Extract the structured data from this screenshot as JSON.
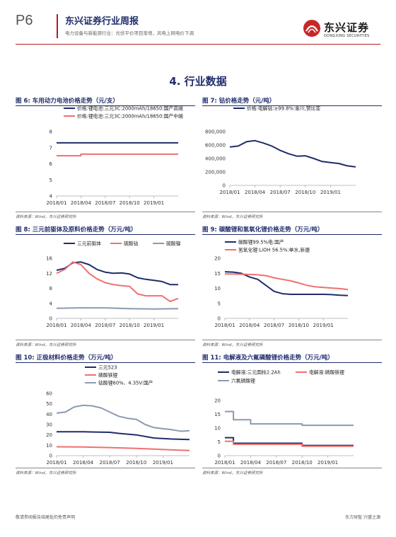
{
  "header": {
    "page_number": "P6",
    "title": "东兴证券行业周报",
    "subtitle": "电力设备与新能源行业：光伏平价项目渐增，风电上网电价下调",
    "logo_name": "东兴证券",
    "logo_en": "DONGXING SECURITIES"
  },
  "section_title": "4. 行业数据",
  "source_label": "资料来源：Wind，东兴证券研究所",
  "footer": {
    "left": "敬请参阅报告结尾处的免责声明",
    "right": "东方财智 兴盛之源"
  },
  "colors": {
    "navy": "#1f2d6b",
    "red": "#f07070",
    "gray": "#8a9bb0",
    "brand_red": "#b71c1c"
  },
  "chart_data": [
    {
      "figure_title": "图 6: 车用动力电池价格走势（元/支）",
      "type": "line",
      "x_ticks": [
        "2018/01",
        "2018/04",
        "2018/07",
        "2018/10",
        "2019/01"
      ],
      "y_ticks": [
        "4",
        "5",
        "6",
        "7",
        "8"
      ],
      "ylim": [
        4,
        8
      ],
      "series": [
        {
          "name": "价格:锂电池:三元3C:2000mAh/18650:国产高端",
          "color": "#1f2d6b",
          "points": [
            [
              "2018/01",
              7.3
            ],
            [
              "2019/04",
              7.3
            ]
          ]
        },
        {
          "name": "价格:锂电池:三元3C:2000mAh/18650:国产中端",
          "color": "#f07070",
          "points": [
            [
              "2018/01",
              6.5
            ],
            [
              "2018/04",
              6.5
            ],
            [
              "2018/04",
              6.6
            ],
            [
              "2019/04",
              6.6
            ]
          ]
        }
      ]
    },
    {
      "figure_title": "图 7: 钴价格走势（元/吨）",
      "type": "line",
      "x_ticks": [
        "2018/01",
        "2018/04",
        "2018/07",
        "2018/10",
        "2019/01"
      ],
      "y_ticks": [
        "0",
        "200,000",
        "400,000",
        "600,000",
        "800,000"
      ],
      "ylim": [
        0,
        800000
      ],
      "series": [
        {
          "name": "价格:电解钴:≥99.8%:金川,赞比亚",
          "color": "#1f2d6b",
          "points": [
            [
              "2018/01",
              570000
            ],
            [
              "2018/02",
              585000
            ],
            [
              "2018/03",
              650000
            ],
            [
              "2018/04",
              665000
            ],
            [
              "2018/05",
              630000
            ],
            [
              "2018/06",
              585000
            ],
            [
              "2018/07",
              520000
            ],
            [
              "2018/08",
              470000
            ],
            [
              "2018/09",
              435000
            ],
            [
              "2018/10",
              440000
            ],
            [
              "2018/11",
              400000
            ],
            [
              "2018/12",
              355000
            ],
            [
              "2019/01",
              340000
            ],
            [
              "2019/02",
              325000
            ],
            [
              "2019/03",
              290000
            ],
            [
              "2019/04",
              275000
            ]
          ]
        }
      ]
    },
    {
      "figure_title": "图 8: 三元前驱体及原料价格走势（万元/吨）",
      "type": "line",
      "x_ticks": [
        "2018/01",
        "2018/04",
        "2018/07",
        "2018/10",
        "2019/01"
      ],
      "y_ticks": [
        "0",
        "4",
        "8",
        "12",
        "16"
      ],
      "ylim": [
        0,
        16
      ],
      "series": [
        {
          "name": "三元前驱体",
          "color": "#1f2d6b",
          "points": [
            [
              "2018/01",
              12.8
            ],
            [
              "2018/02",
              13.3
            ],
            [
              "2018/03",
              14.8
            ],
            [
              "2018/04",
              15.0
            ],
            [
              "2018/05",
              14.3
            ],
            [
              "2018/06",
              13.0
            ],
            [
              "2018/07",
              12.3
            ],
            [
              "2018/08",
              12.0
            ],
            [
              "2018/09",
              12.1
            ],
            [
              "2018/10",
              11.8
            ],
            [
              "2018/11",
              10.8
            ],
            [
              "2018/12",
              10.4
            ],
            [
              "2019/01",
              10.1
            ],
            [
              "2019/02",
              9.8
            ],
            [
              "2019/03",
              9.0
            ],
            [
              "2019/04",
              9.0
            ]
          ]
        },
        {
          "name": "硫酸钴",
          "color": "#f07070",
          "points": [
            [
              "2018/01",
              12.0
            ],
            [
              "2018/02",
              13.0
            ],
            [
              "2018/03",
              15.0
            ],
            [
              "2018/04",
              14.3
            ],
            [
              "2018/05",
              12.0
            ],
            [
              "2018/06",
              10.5
            ],
            [
              "2018/07",
              9.5
            ],
            [
              "2018/08",
              9.0
            ],
            [
              "2018/09",
              8.7
            ],
            [
              "2018/10",
              8.5
            ],
            [
              "2018/11",
              6.5
            ],
            [
              "2018/12",
              6.0
            ],
            [
              "2019/01",
              6.0
            ],
            [
              "2019/02",
              6.0
            ],
            [
              "2019/03",
              4.5
            ],
            [
              "2019/04",
              5.3
            ]
          ]
        },
        {
          "name": "硫酸镍",
          "color": "#8a9bb0",
          "points": [
            [
              "2018/01",
              2.7
            ],
            [
              "2018/04",
              2.8
            ],
            [
              "2018/07",
              2.8
            ],
            [
              "2018/10",
              2.6
            ],
            [
              "2019/01",
              2.5
            ],
            [
              "2019/04",
              2.6
            ]
          ]
        }
      ]
    },
    {
      "figure_title": "图 9: 碳酸锂和氢氧化锂价格走势（万元/吨）",
      "type": "line",
      "x_ticks": [
        "2018/01",
        "2018/04",
        "2018/07",
        "2018/10",
        "2019/01"
      ],
      "y_ticks": [
        "0",
        "5",
        "10",
        "15",
        "20"
      ],
      "ylim": [
        0,
        20
      ],
      "series": [
        {
          "name": "碳酸锂99.5%电:国产",
          "color": "#1f2d6b",
          "points": [
            [
              "2018/01",
              15.5
            ],
            [
              "2018/02",
              15.4
            ],
            [
              "2018/03",
              15.0
            ],
            [
              "2018/04",
              13.8
            ],
            [
              "2018/05",
              13.0
            ],
            [
              "2018/06",
              11.0
            ],
            [
              "2018/07",
              9.0
            ],
            [
              "2018/08",
              8.2
            ],
            [
              "2018/09",
              8.0
            ],
            [
              "2018/10",
              8.0
            ],
            [
              "2018/11",
              8.0
            ],
            [
              "2018/12",
              8.0
            ],
            [
              "2019/01",
              8.0
            ],
            [
              "2019/02",
              7.9
            ],
            [
              "2019/03",
              7.7
            ],
            [
              "2019/04",
              7.6
            ]
          ]
        },
        {
          "name": "氢氧化锂:LiOH 56.5%:单水,新疆",
          "color": "#f07070",
          "points": [
            [
              "2018/01",
              14.8
            ],
            [
              "2018/04",
              14.6
            ],
            [
              "2018/05",
              14.5
            ],
            [
              "2018/06",
              14.2
            ],
            [
              "2018/07",
              13.5
            ],
            [
              "2018/08",
              13.0
            ],
            [
              "2018/09",
              12.5
            ],
            [
              "2018/10",
              11.8
            ],
            [
              "2018/11",
              11.0
            ],
            [
              "2018/12",
              10.5
            ],
            [
              "2019/01",
              10.3
            ],
            [
              "2019/02",
              10.1
            ],
            [
              "2019/03",
              9.9
            ],
            [
              "2019/04",
              9.6
            ]
          ]
        }
      ]
    },
    {
      "figure_title": "图 10: 正极材料价格走势（万元/吨）",
      "type": "line",
      "x_ticks": [
        "2018/01",
        "2018/04",
        "2018/07",
        "2018/10",
        "2019/01"
      ],
      "y_ticks": [
        "0",
        "10",
        "20",
        "30",
        "40",
        "50",
        "60"
      ],
      "ylim": [
        0,
        60
      ],
      "series": [
        {
          "name": "三元523",
          "color": "#1f2d6b",
          "points": [
            [
              "2018/01",
              23.0
            ],
            [
              "2018/04",
              23.0
            ],
            [
              "2018/07",
              22.5
            ],
            [
              "2018/08",
              21.5
            ],
            [
              "2018/10",
              20.0
            ],
            [
              "2018/12",
              17.0
            ],
            [
              "2019/02",
              16.0
            ],
            [
              "2019/04",
              15.5
            ]
          ]
        },
        {
          "name": "磷酸铁锂",
          "color": "#f07070",
          "points": [
            [
              "2018/01",
              8.5
            ],
            [
              "2018/04",
              8.3
            ],
            [
              "2018/07",
              7.8
            ],
            [
              "2018/10",
              7.0
            ],
            [
              "2018/12",
              6.3
            ],
            [
              "2019/02",
              5.5
            ],
            [
              "2019/04",
              5.0
            ]
          ]
        },
        {
          "name": "钴酸锂60%、4.35V:国产",
          "color": "#8a9bb0",
          "points": [
            [
              "2018/01",
              41.0
            ],
            [
              "2018/02",
              42.0
            ],
            [
              "2018/03",
              47.0
            ],
            [
              "2018/04",
              48.5
            ],
            [
              "2018/05",
              48.0
            ],
            [
              "2018/06",
              46.0
            ],
            [
              "2018/07",
              42.0
            ],
            [
              "2018/08",
              38.0
            ],
            [
              "2018/09",
              36.0
            ],
            [
              "2018/10",
              35.0
            ],
            [
              "2018/11",
              30.0
            ],
            [
              "2018/12",
              27.0
            ],
            [
              "2019/01",
              26.0
            ],
            [
              "2019/02",
              25.0
            ],
            [
              "2019/03",
              23.5
            ],
            [
              "2019/04",
              24.0
            ]
          ]
        }
      ]
    },
    {
      "figure_title": "图 11: 电解液及六氟磷酸锂价格走势（万元/吨）",
      "type": "line",
      "x_ticks": [
        "2018/01",
        "2018/04",
        "2018/07",
        "2018/10",
        "2019/01"
      ],
      "y_ticks": [
        "0",
        "5",
        "10",
        "15",
        "20"
      ],
      "ylim": [
        0,
        20
      ],
      "series": [
        {
          "name": "电解液:三元圆柱2.2Ah",
          "color": "#1f2d6b",
          "points": [
            [
              "2018/01",
              6.5
            ],
            [
              "2018/02",
              6.5
            ],
            [
              "2018/02",
              4.5
            ],
            [
              "2018/10",
              4.5
            ],
            [
              "2018/10",
              3.7
            ],
            [
              "2019/04",
              3.7
            ]
          ]
        },
        {
          "name": "电解液:磷酸铁锂",
          "color": "#f07070",
          "points": [
            [
              "2018/01",
              5.2
            ],
            [
              "2018/02",
              5.2
            ],
            [
              "2018/02",
              4.1
            ],
            [
              "2018/10",
              4.1
            ],
            [
              "2018/10",
              3.4
            ],
            [
              "2019/04",
              3.4
            ]
          ]
        },
        {
          "name": "六氟磷酸锂",
          "color": "#8a9bb0",
          "points": [
            [
              "2018/01",
              16.0
            ],
            [
              "2018/02",
              16.0
            ],
            [
              "2018/02",
              13.0
            ],
            [
              "2018/04",
              13.0
            ],
            [
              "2018/04",
              11.5
            ],
            [
              "2018/10",
              11.5
            ],
            [
              "2018/10",
              11.0
            ],
            [
              "2019/04",
              11.0
            ]
          ]
        }
      ]
    }
  ]
}
